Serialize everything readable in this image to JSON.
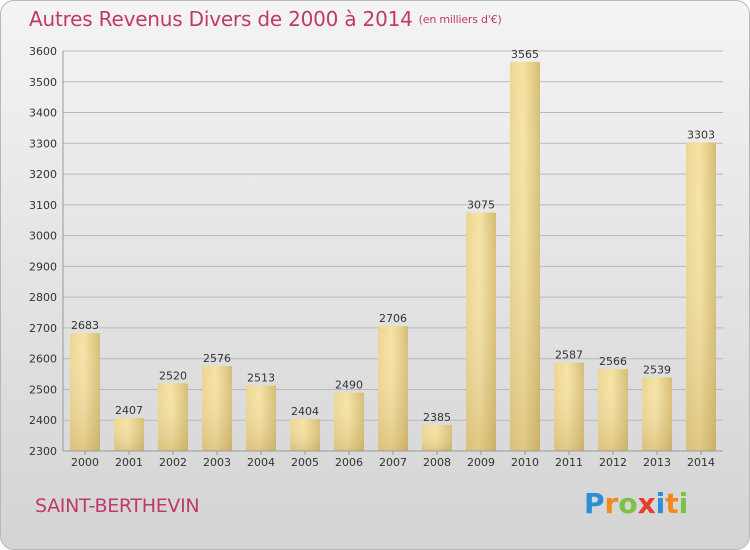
{
  "title": "Autres Revenus Divers de 2000 à 2014",
  "title_unit": "(en milliers d'€)",
  "commune": "SAINT-BERTHEVIN",
  "logo": {
    "letters": [
      {
        "ch": "P",
        "color": "#2a8fd6"
      },
      {
        "ch": "r",
        "color": "#f08a1c"
      },
      {
        "ch": "o",
        "color": "#7cc242"
      },
      {
        "ch": "x",
        "color": "#e63c2f"
      },
      {
        "ch": "i",
        "color": "#2a8fd6"
      },
      {
        "ch": "t",
        "color": "#f08a1c"
      },
      {
        "ch": "i",
        "color": "#7cc242"
      }
    ]
  },
  "colors": {
    "title": "#c0396b",
    "bar_light": "#f6e3a4",
    "bar_dark": "#c8aa5c",
    "grid": "#b9b9b9",
    "text": "#333333"
  },
  "chart_data": {
    "type": "bar",
    "title": "Autres Revenus Divers de 2000 à 2014",
    "ylabel": "",
    "xlabel": "",
    "ylim": [
      2300,
      3600
    ],
    "yticks": [
      2300,
      2400,
      2500,
      2600,
      2700,
      2800,
      2900,
      3000,
      3100,
      3200,
      3300,
      3400,
      3500,
      3600
    ],
    "grid": true,
    "categories": [
      "2000",
      "2001",
      "2002",
      "2003",
      "2004",
      "2005",
      "2006",
      "2007",
      "2008",
      "2009",
      "2010",
      "2011",
      "2012",
      "2013",
      "2014"
    ],
    "values": [
      2683,
      2407,
      2520,
      2576,
      2513,
      2404,
      2490,
      2706,
      2385,
      3075,
      3565,
      2587,
      2566,
      2539,
      3303
    ]
  }
}
